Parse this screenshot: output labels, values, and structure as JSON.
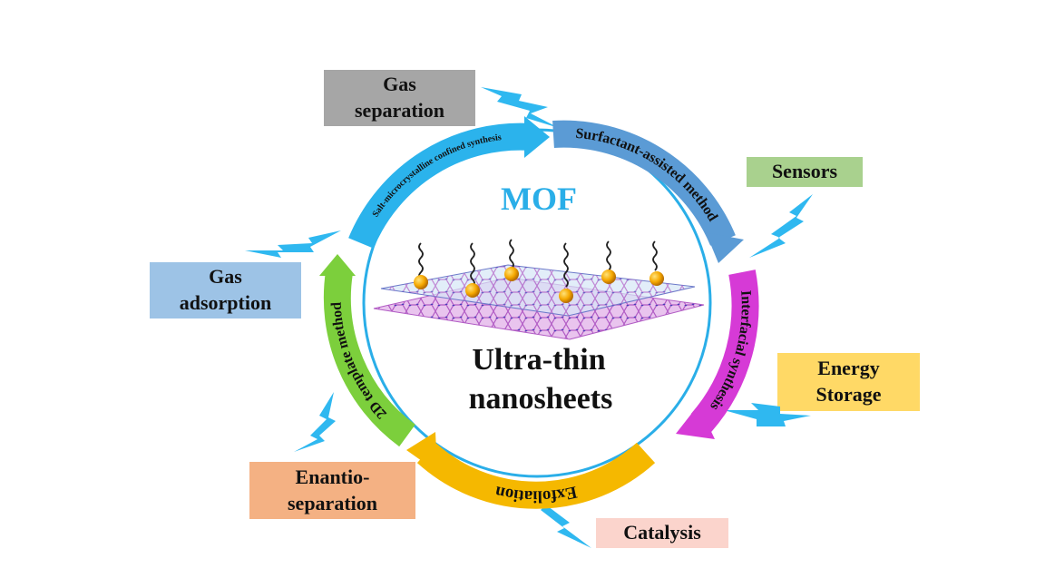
{
  "center": {
    "top_label": "MOF",
    "bottom_line1": "Ultra-thin",
    "bottom_line2": "nanosheets"
  },
  "methods": [
    {
      "id": "salt",
      "label": "Salt-microcrystalline confined synthesis",
      "color": "#2bb3ec"
    },
    {
      "id": "surfactant",
      "label": "Surfactant-assisted method",
      "color": "#5b9bd5"
    },
    {
      "id": "interfacial",
      "label": "Interfacial synthesis",
      "color": "#d63ad6"
    },
    {
      "id": "exfoliation",
      "label": "Exfoliation",
      "color": "#f5b800"
    },
    {
      "id": "template",
      "label": "2D template method",
      "color": "#7ccf3c"
    }
  ],
  "applications": {
    "gas_separation": {
      "line1": "Gas",
      "line2": "separation",
      "color": "#a6a6a6"
    },
    "sensors": {
      "line1": "Sensors",
      "color": "#a9d18e"
    },
    "energy_storage": {
      "line1": "Energy",
      "line2": "Storage",
      "color": "#ffd966"
    },
    "catalysis": {
      "line1": "Catalysis",
      "color": "#fbd4cc"
    },
    "enantio_separation": {
      "line1": "Enantio-",
      "line2": "separation",
      "color": "#f4b183"
    },
    "gas_adsorption": {
      "line1": "Gas",
      "line2": "adsorption",
      "color": "#9dc3e6"
    }
  },
  "colors": {
    "mof_text": "#2aaee8",
    "circle_outline": "#2aaee8",
    "lightning": "#2fb8f0",
    "nanosheet": "#c070c8"
  }
}
